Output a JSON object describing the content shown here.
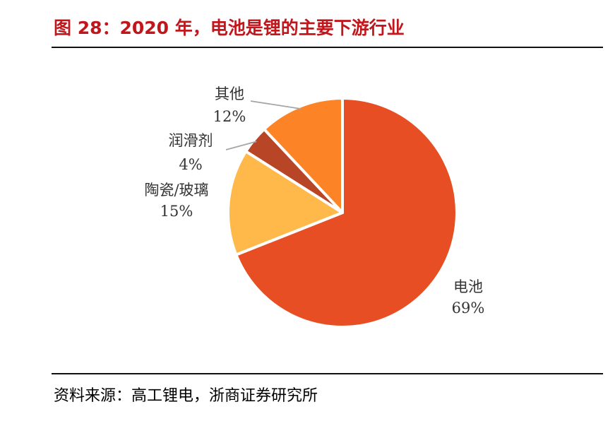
{
  "header": {
    "title": "图 28：2020 年，电池是锂的主要下游行业"
  },
  "footer": {
    "source": "资料来源：高工锂电，浙商证券研究所"
  },
  "chart_data": {
    "type": "pie",
    "start_angle_deg": 0,
    "direction": "clockwise",
    "slices": [
      {
        "name": "电池",
        "value": 69,
        "label": "69%",
        "color": "#e84e23"
      },
      {
        "name": "陶瓷/玻璃",
        "value": 15,
        "label": "15%",
        "color": "#ffb94a"
      },
      {
        "name": "润滑剂",
        "value": 4,
        "label": "4%",
        "color": "#b84526"
      },
      {
        "name": "其他",
        "value": 12,
        "label": "12%",
        "color": "#fc8427"
      }
    ]
  }
}
